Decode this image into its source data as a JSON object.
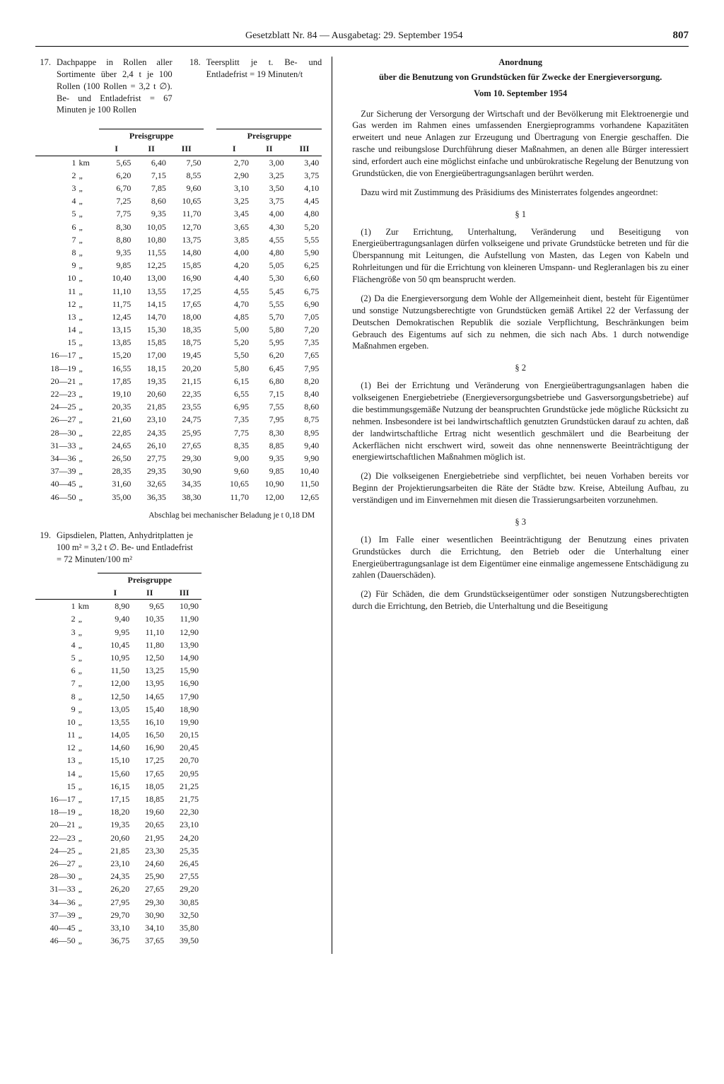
{
  "header": {
    "title": "Gesetzblatt Nr. 84 — Ausgabetag: 29. September 1954",
    "page": "807"
  },
  "items": {
    "i17": {
      "num": "17.",
      "text": "Dachpappe in Rollen aller Sortimente über 2,4 t je 100 Rollen (100 Rollen = 3,2 t ∅). Be- und Entladefrist = 67 Minuten je 100 Rollen"
    },
    "i18": {
      "num": "18.",
      "text": "Teersplitt je t. Be- und Entladefrist = 19 Minuten/t"
    },
    "i19": {
      "num": "19.",
      "text": "Gipsdielen, Platten, Anhydritplatten je 100 m² = 3,2 t ∅. Be- und Entladefrist = 72 Minuten/100 m²"
    }
  },
  "table1": {
    "group_label": "Preisgruppe",
    "cols": [
      "I",
      "II",
      "III"
    ],
    "unit": "km",
    "ditto": "„",
    "rows": [
      {
        "km": "1",
        "a": [
          "5,65",
          "6,40",
          "7,50"
        ],
        "b": [
          "2,70",
          "3,00",
          "3,40"
        ]
      },
      {
        "km": "2",
        "a": [
          "6,20",
          "7,15",
          "8,55"
        ],
        "b": [
          "2,90",
          "3,25",
          "3,75"
        ]
      },
      {
        "km": "3",
        "a": [
          "6,70",
          "7,85",
          "9,60"
        ],
        "b": [
          "3,10",
          "3,50",
          "4,10"
        ]
      },
      {
        "km": "4",
        "a": [
          "7,25",
          "8,60",
          "10,65"
        ],
        "b": [
          "3,25",
          "3,75",
          "4,45"
        ]
      },
      {
        "km": "5",
        "a": [
          "7,75",
          "9,35",
          "11,70"
        ],
        "b": [
          "3,45",
          "4,00",
          "4,80"
        ]
      },
      {
        "km": "6",
        "a": [
          "8,30",
          "10,05",
          "12,70"
        ],
        "b": [
          "3,65",
          "4,30",
          "5,20"
        ]
      },
      {
        "km": "7",
        "a": [
          "8,80",
          "10,80",
          "13,75"
        ],
        "b": [
          "3,85",
          "4,55",
          "5,55"
        ]
      },
      {
        "km": "8",
        "a": [
          "9,35",
          "11,55",
          "14,80"
        ],
        "b": [
          "4,00",
          "4,80",
          "5,90"
        ]
      },
      {
        "km": "9",
        "a": [
          "9,85",
          "12,25",
          "15,85"
        ],
        "b": [
          "4,20",
          "5,05",
          "6,25"
        ]
      },
      {
        "km": "10",
        "a": [
          "10,40",
          "13,00",
          "16,90"
        ],
        "b": [
          "4,40",
          "5,30",
          "6,60"
        ]
      },
      {
        "km": "11",
        "a": [
          "11,10",
          "13,55",
          "17,25"
        ],
        "b": [
          "4,55",
          "5,45",
          "6,75"
        ]
      },
      {
        "km": "12",
        "a": [
          "11,75",
          "14,15",
          "17,65"
        ],
        "b": [
          "4,70",
          "5,55",
          "6,90"
        ]
      },
      {
        "km": "13",
        "a": [
          "12,45",
          "14,70",
          "18,00"
        ],
        "b": [
          "4,85",
          "5,70",
          "7,05"
        ]
      },
      {
        "km": "14",
        "a": [
          "13,15",
          "15,30",
          "18,35"
        ],
        "b": [
          "5,00",
          "5,80",
          "7,20"
        ]
      },
      {
        "km": "15",
        "a": [
          "13,85",
          "15,85",
          "18,75"
        ],
        "b": [
          "5,20",
          "5,95",
          "7,35"
        ]
      },
      {
        "km": "16—17",
        "a": [
          "15,20",
          "17,00",
          "19,45"
        ],
        "b": [
          "5,50",
          "6,20",
          "7,65"
        ]
      },
      {
        "km": "18—19",
        "a": [
          "16,55",
          "18,15",
          "20,20"
        ],
        "b": [
          "5,80",
          "6,45",
          "7,95"
        ]
      },
      {
        "km": "20—21",
        "a": [
          "17,85",
          "19,35",
          "21,15"
        ],
        "b": [
          "6,15",
          "6,80",
          "8,20"
        ]
      },
      {
        "km": "22—23",
        "a": [
          "19,10",
          "20,60",
          "22,35"
        ],
        "b": [
          "6,55",
          "7,15",
          "8,40"
        ]
      },
      {
        "km": "24—25",
        "a": [
          "20,35",
          "21,85",
          "23,55"
        ],
        "b": [
          "6,95",
          "7,55",
          "8,60"
        ]
      },
      {
        "km": "26—27",
        "a": [
          "21,60",
          "23,10",
          "24,75"
        ],
        "b": [
          "7,35",
          "7,95",
          "8,75"
        ]
      },
      {
        "km": "28—30",
        "a": [
          "22,85",
          "24,35",
          "25,95"
        ],
        "b": [
          "7,75",
          "8,30",
          "8,95"
        ]
      },
      {
        "km": "31—33",
        "a": [
          "24,65",
          "26,10",
          "27,65"
        ],
        "b": [
          "8,35",
          "8,85",
          "9,40"
        ]
      },
      {
        "km": "34—36",
        "a": [
          "26,50",
          "27,75",
          "29,30"
        ],
        "b": [
          "9,00",
          "9,35",
          "9,90"
        ]
      },
      {
        "km": "37—39",
        "a": [
          "28,35",
          "29,35",
          "30,90"
        ],
        "b": [
          "9,60",
          "9,85",
          "10,40"
        ]
      },
      {
        "km": "40—45",
        "a": [
          "31,60",
          "32,65",
          "34,35"
        ],
        "b": [
          "10,65",
          "10,90",
          "11,50"
        ]
      },
      {
        "km": "46—50",
        "a": [
          "35,00",
          "36,35",
          "38,30"
        ],
        "b": [
          "11,70",
          "12,00",
          "12,65"
        ]
      }
    ],
    "footnote": "Abschlag bei mechanischer Beladung je t 0,18 DM"
  },
  "table2": {
    "group_label": "Preisgruppe",
    "cols": [
      "I",
      "II",
      "III"
    ],
    "unit": "km",
    "ditto": "„",
    "rows": [
      {
        "km": "1",
        "v": [
          "8,90",
          "9,65",
          "10,90"
        ]
      },
      {
        "km": "2",
        "v": [
          "9,40",
          "10,35",
          "11,90"
        ]
      },
      {
        "km": "3",
        "v": [
          "9,95",
          "11,10",
          "12,90"
        ]
      },
      {
        "km": "4",
        "v": [
          "10,45",
          "11,80",
          "13,90"
        ]
      },
      {
        "km": "5",
        "v": [
          "10,95",
          "12,50",
          "14,90"
        ]
      },
      {
        "km": "6",
        "v": [
          "11,50",
          "13,25",
          "15,90"
        ]
      },
      {
        "km": "7",
        "v": [
          "12,00",
          "13,95",
          "16,90"
        ]
      },
      {
        "km": "8",
        "v": [
          "12,50",
          "14,65",
          "17,90"
        ]
      },
      {
        "km": "9",
        "v": [
          "13,05",
          "15,40",
          "18,90"
        ]
      },
      {
        "km": "10",
        "v": [
          "13,55",
          "16,10",
          "19,90"
        ]
      },
      {
        "km": "11",
        "v": [
          "14,05",
          "16,50",
          "20,15"
        ]
      },
      {
        "km": "12",
        "v": [
          "14,60",
          "16,90",
          "20,45"
        ]
      },
      {
        "km": "13",
        "v": [
          "15,10",
          "17,25",
          "20,70"
        ]
      },
      {
        "km": "14",
        "v": [
          "15,60",
          "17,65",
          "20,95"
        ]
      },
      {
        "km": "15",
        "v": [
          "16,15",
          "18,05",
          "21,25"
        ]
      },
      {
        "km": "16—17",
        "v": [
          "17,15",
          "18,85",
          "21,75"
        ]
      },
      {
        "km": "18—19",
        "v": [
          "18,20",
          "19,60",
          "22,30"
        ]
      },
      {
        "km": "20—21",
        "v": [
          "19,35",
          "20,65",
          "23,10"
        ]
      },
      {
        "km": "22—23",
        "v": [
          "20,60",
          "21,95",
          "24,20"
        ]
      },
      {
        "km": "24—25",
        "v": [
          "21,85",
          "23,30",
          "25,35"
        ]
      },
      {
        "km": "26—27",
        "v": [
          "23,10",
          "24,60",
          "26,45"
        ]
      },
      {
        "km": "28—30",
        "v": [
          "24,35",
          "25,90",
          "27,55"
        ]
      },
      {
        "km": "31—33",
        "v": [
          "26,20",
          "27,65",
          "29,20"
        ]
      },
      {
        "km": "34—36",
        "v": [
          "27,95",
          "29,30",
          "30,85"
        ]
      },
      {
        "km": "37—39",
        "v": [
          "29,70",
          "30,90",
          "32,50"
        ]
      },
      {
        "km": "40—45",
        "v": [
          "33,10",
          "34,10",
          "35,80"
        ]
      },
      {
        "km": "46—50",
        "v": [
          "36,75",
          "37,65",
          "39,50"
        ]
      }
    ]
  },
  "ordnance": {
    "title1": "Anordnung",
    "title2": "über die Benutzung von Grundstücken für Zwecke der Energieversorgung.",
    "date": "Vom 10. September 1954",
    "intro1": "Zur Sicherung der Versorgung der Wirtschaft und der Bevölkerung mit Elektroenergie und Gas werden im Rahmen eines umfassenden Energieprogramms vorhandene Kapazitäten erweitert und neue Anlagen zur Erzeugung und Übertragung von Energie geschaffen. Die rasche und reibungslose Durchführung dieser Maßnahmen, an denen alle Bürger interessiert sind, erfordert auch eine möglichst einfache und unbürokratische Regelung der Benutzung von Grundstücken, die von Energieübertragungsanlagen berührt werden.",
    "intro2": "Dazu wird mit Zustimmung des Präsidiums des Ministerrates folgendes angeordnet:",
    "s1": "§ 1",
    "s1p1": "(1) Zur Errichtung, Unterhaltung, Veränderung und Beseitigung von Energieübertragungsanlagen dürfen volkseigene und private Grundstücke betreten und für die Überspannung mit Leitungen, die Aufstellung von Masten, das Legen von Kabeln und Rohrleitungen und für die Errichtung von kleineren Umspann- und Regleranlagen bis zu einer Flächengröße von 50 qm beansprucht werden.",
    "s1p2": "(2) Da die Energieversorgung dem Wohle der Allgemeinheit dient, besteht für Eigentümer und sonstige Nutzungsberechtigte von Grundstücken gemäß Artikel 22 der Verfassung der Deutschen Demokratischen Republik die soziale Verpflichtung, Beschränkungen beim Gebrauch des Eigentums auf sich zu nehmen, die sich nach Abs. 1 durch notwendige Maßnahmen ergeben.",
    "s2": "§ 2",
    "s2p1": "(1) Bei der Errichtung und Veränderung von Energieübertragungsanlagen haben die volkseigenen Energiebetriebe (Energieversorgungsbetriebe und Gasversorgungsbetriebe) auf die bestimmungsgemäße Nutzung der beanspruchten Grundstücke jede mögliche Rücksicht zu nehmen. Insbesondere ist bei landwirtschaftlich genutzten Grundstücken darauf zu achten, daß der landwirtschaftliche Ertrag nicht wesentlich geschmälert und die Bearbeitung der Ackerflächen nicht erschwert wird, soweit das ohne nennenswerte Beeinträchtigung der energiewirtschaftlichen Maßnahmen möglich ist.",
    "s2p2": "(2) Die volkseigenen Energiebetriebe sind verpflichtet, bei neuen Vorhaben bereits vor Beginn der Projektierungsarbeiten die Räte der Städte bzw. Kreise, Abteilung Aufbau, zu verständigen und im Einvernehmen mit diesen die Trassierungsarbeiten vorzunehmen.",
    "s3": "§ 3",
    "s3p1": "(1) Im Falle einer wesentlichen Beeinträchtigung der Benutzung eines privaten Grundstückes durch die Errichtung, den Betrieb oder die Unterhaltung einer Energieübertragungsanlage ist dem Eigentümer eine einmalige angemessene Entschädigung zu zahlen (Dauerschäden).",
    "s3p2": "(2) Für Schäden, die dem Grundstückseigentümer oder sonstigen Nutzungsberechtigten durch die Errichtung, den Betrieb, die Unterhaltung und die Beseitigung"
  }
}
